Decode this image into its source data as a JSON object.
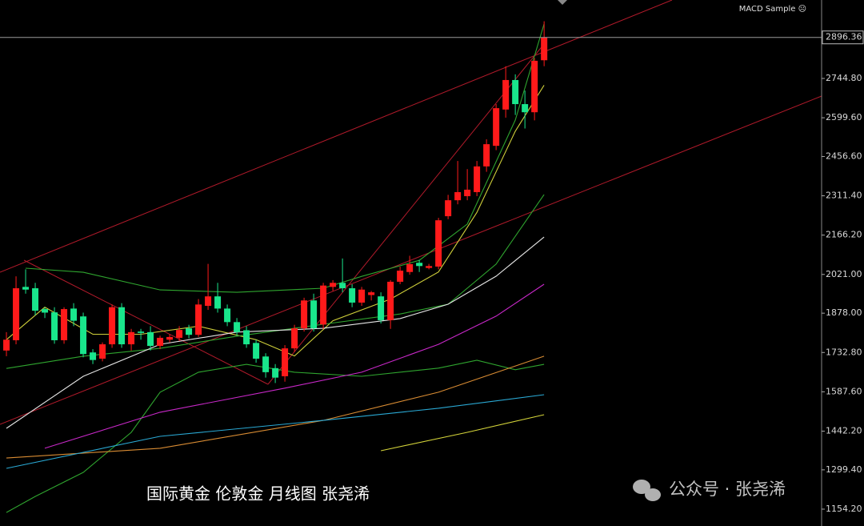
{
  "chart_data": {
    "type": "candlestick",
    "indicator_label": "MACD Sample ☹",
    "caption": "国际黄金 伦敦金 月线图 张尧浠",
    "watermark": "公众号 · 张尧浠",
    "up_color": "#ff1a1a",
    "down_color": "#19e68c",
    "last_price": 2896.36,
    "xlim": [
      -0.67,
      84.9
    ],
    "ylim": [
      1092,
      3034.5
    ],
    "yticks": [
      {
        "value": 2744.8,
        "label": "2744.80"
      },
      {
        "value": 2599.6,
        "label": "2599.60"
      },
      {
        "value": 2456.6,
        "label": "2456.60"
      },
      {
        "value": 2311.4,
        "label": "2311.40"
      },
      {
        "value": 2166.2,
        "label": "2166.20"
      },
      {
        "value": 2021,
        "label": "2021.00"
      },
      {
        "value": 1878,
        "label": "1878.00"
      },
      {
        "value": 1732.8,
        "label": "1732.80"
      },
      {
        "value": 1587.6,
        "label": "1587.60"
      },
      {
        "value": 1442.2,
        "label": "1442.20"
      },
      {
        "value": 1299.4,
        "label": "1299.40"
      },
      {
        "value": 1154.2,
        "label": "1154.20"
      }
    ],
    "open": [
      1740,
      1778,
      1975,
      1970,
      1893,
      1881,
      1778,
      1895,
      1866,
      1733,
      1710,
      1763,
      1900,
      1763,
      1810,
      1808,
      1757,
      1780,
      1787,
      1822,
      1798,
      1905,
      1940,
      1895,
      1845,
      1815,
      1768,
      1718,
      1675,
      1645,
      1748,
      1822,
      1925,
      1836,
      1975,
      1990,
      1970,
      1917,
      1945,
      1940,
      1852,
      1994,
      2030,
      2064,
      2045,
      2050,
      2236,
      2295,
      2310,
      2325,
      2420,
      2496,
      2630,
      2739,
      2650,
      2620,
      2812
    ],
    "high": [
      1808,
      2014,
      2040,
      1990,
      1900,
      1900,
      1900,
      1915,
      1880,
      1745,
      1770,
      1910,
      1915,
      1820,
      1820,
      1830,
      1795,
      1800,
      1830,
      1835,
      1930,
      2060,
      1990,
      1910,
      1860,
      1830,
      1780,
      1730,
      1690,
      1760,
      1835,
      1935,
      1950,
      1990,
      2000,
      2080,
      1985,
      1975,
      1960,
      1955,
      2000,
      2050,
      2090,
      2075,
      2060,
      2230,
      2315,
      2440,
      2410,
      2440,
      2520,
      2650,
      2790,
      2760,
      2700,
      2820,
      2956
    ],
    "low": [
      1719,
      1763,
      1950,
      1870,
      1860,
      1765,
      1765,
      1830,
      1715,
      1690,
      1700,
      1750,
      1750,
      1740,
      1780,
      1740,
      1745,
      1770,
      1775,
      1785,
      1790,
      1890,
      1880,
      1830,
      1795,
      1750,
      1695,
      1640,
      1620,
      1625,
      1735,
      1810,
      1810,
      1820,
      1960,
      1955,
      1900,
      1905,
      1925,
      1840,
      1820,
      1985,
      2020,
      2030,
      2040,
      2040,
      2225,
      2280,
      2295,
      2310,
      2400,
      2480,
      2600,
      2610,
      2560,
      2590,
      2790
    ],
    "close": [
      1780,
      1970,
      1965,
      1887,
      1880,
      1778,
      1893,
      1850,
      1727,
      1705,
      1763,
      1900,
      1763,
      1808,
      1805,
      1757,
      1787,
      1790,
      1816,
      1798,
      1910,
      1940,
      1895,
      1845,
      1808,
      1763,
      1710,
      1660,
      1640,
      1748,
      1822,
      1925,
      1822,
      1980,
      1990,
      1970,
      1917,
      1965,
      1955,
      1852,
      1994,
      2035,
      2059,
      2052,
      2052,
      2221,
      2295,
      2325,
      2334,
      2420,
      2502,
      2635,
      2739,
      2650,
      2620,
      2810,
      2896.36
    ],
    "overlays": [
      {
        "color": "#cfcf3a",
        "x": [
          0,
          4,
          9,
          14,
          20,
          26,
          30,
          34,
          40,
          45,
          49,
          53,
          56
        ],
        "values": [
          1780,
          1900,
          1800,
          1800,
          1830,
          1780,
          1720,
          1850,
          1930,
          2030,
          2250,
          2550,
          2720
        ]
      },
      {
        "color": "#2fa52f",
        "x": [
          2,
          8,
          16,
          24,
          33,
          37,
          43,
          48,
          53,
          56
        ],
        "values": [
          2044,
          2029,
          1964,
          1955,
          1970,
          2014,
          2073,
          2207,
          2591,
          2946
        ]
      },
      {
        "color": "#2fa52f",
        "x": [
          0,
          8,
          16,
          24,
          33,
          41,
          46,
          51,
          56
        ],
        "values": [
          1674,
          1719,
          1748,
          1793,
          1837,
          1875,
          1911,
          2059,
          2316
        ]
      },
      {
        "color": "#2fa52f",
        "x": [
          0,
          3,
          8,
          13,
          16,
          20,
          25,
          30,
          37,
          45,
          49,
          53,
          56
        ],
        "values": [
          1142,
          1201,
          1290,
          1438,
          1586,
          1660,
          1689,
          1660,
          1645,
          1675,
          1704,
          1669,
          1689
        ]
      },
      {
        "color": "#e6e6e6",
        "x": [
          0,
          8,
          16,
          24,
          33,
          41,
          46,
          51,
          56
        ],
        "values": [
          1452.8,
          1645,
          1763,
          1808,
          1822,
          1858,
          1911,
          2014.5,
          2159
        ]
      },
      {
        "color": "#c828c8",
        "x": [
          4,
          16,
          29,
          37,
          45,
          51,
          56
        ],
        "values": [
          1379,
          1512,
          1601,
          1660,
          1763,
          1867,
          1985
        ]
      },
      {
        "color": "#d98c33",
        "x": [
          0,
          16,
          33,
          45,
          56
        ],
        "values": [
          1343,
          1379,
          1482,
          1586,
          1719
        ]
      },
      {
        "color": "#2aa9d4",
        "x": [
          0,
          16,
          33,
          45,
          56
        ],
        "values": [
          1305,
          1423,
          1482,
          1527,
          1577
        ]
      },
      {
        "color": "#d4d43a",
        "x": [
          39,
          48,
          56
        ],
        "values": [
          1370,
          1438,
          1503
        ]
      }
    ]
  }
}
